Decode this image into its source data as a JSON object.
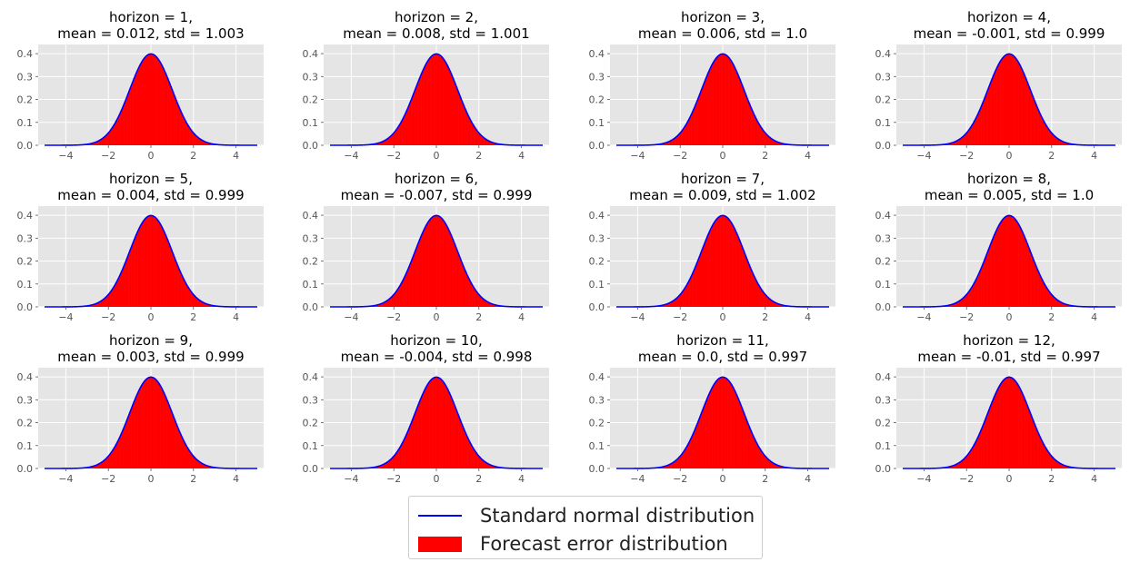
{
  "colors": {
    "axes_background": "#e5e5e5",
    "grid": "#ffffff",
    "histogram": "#ff0000",
    "normal_curve": "#0000ff",
    "tick_text": "#555555",
    "title_text": "#000000"
  },
  "chart_data": [
    {
      "type": "histogram",
      "title_line1": "horizon = 1,",
      "title_line2": "mean = 0.012, std = 1.003",
      "mean": 0.012,
      "std": 1.003,
      "xlim": [
        -5.3,
        5.3
      ],
      "ylim": [
        0,
        0.44
      ],
      "xticks": [
        -4,
        -2,
        0,
        2,
        4
      ],
      "yticks": [
        0.0,
        0.1,
        0.2,
        0.3,
        0.4
      ],
      "grid": true
    },
    {
      "type": "histogram",
      "title_line1": "horizon = 2,",
      "title_line2": "mean = 0.008, std = 1.001",
      "mean": 0.008,
      "std": 1.001,
      "xlim": [
        -5.3,
        5.3
      ],
      "ylim": [
        0,
        0.44
      ],
      "xticks": [
        -4,
        -2,
        0,
        2,
        4
      ],
      "yticks": [
        0.0,
        0.1,
        0.2,
        0.3,
        0.4
      ],
      "grid": true
    },
    {
      "type": "histogram",
      "title_line1": "horizon = 3,",
      "title_line2": "mean = 0.006, std = 1.0",
      "mean": 0.006,
      "std": 1.0,
      "xlim": [
        -5.3,
        5.3
      ],
      "ylim": [
        0,
        0.44
      ],
      "xticks": [
        -4,
        -2,
        0,
        2,
        4
      ],
      "yticks": [
        0.0,
        0.1,
        0.2,
        0.3,
        0.4
      ],
      "grid": true
    },
    {
      "type": "histogram",
      "title_line1": "horizon = 4,",
      "title_line2": "mean = -0.001, std = 0.999",
      "mean": -0.001,
      "std": 0.999,
      "xlim": [
        -5.3,
        5.3
      ],
      "ylim": [
        0,
        0.44
      ],
      "xticks": [
        -4,
        -2,
        0,
        2,
        4
      ],
      "yticks": [
        0.0,
        0.1,
        0.2,
        0.3,
        0.4
      ],
      "grid": true
    },
    {
      "type": "histogram",
      "title_line1": "horizon = 5,",
      "title_line2": "mean = 0.004, std = 0.999",
      "mean": 0.004,
      "std": 0.999,
      "xlim": [
        -5.3,
        5.3
      ],
      "ylim": [
        0,
        0.44
      ],
      "xticks": [
        -4,
        -2,
        0,
        2,
        4
      ],
      "yticks": [
        0.0,
        0.1,
        0.2,
        0.3,
        0.4
      ],
      "grid": true
    },
    {
      "type": "histogram",
      "title_line1": "horizon = 6,",
      "title_line2": "mean = -0.007, std = 0.999",
      "mean": -0.007,
      "std": 0.999,
      "xlim": [
        -5.3,
        5.3
      ],
      "ylim": [
        0,
        0.44
      ],
      "xticks": [
        -4,
        -2,
        0,
        2,
        4
      ],
      "yticks": [
        0.0,
        0.1,
        0.2,
        0.3,
        0.4
      ],
      "grid": true
    },
    {
      "type": "histogram",
      "title_line1": "horizon = 7,",
      "title_line2": "mean = 0.009, std = 1.002",
      "mean": 0.009,
      "std": 1.002,
      "xlim": [
        -5.3,
        5.3
      ],
      "ylim": [
        0,
        0.44
      ],
      "xticks": [
        -4,
        -2,
        0,
        2,
        4
      ],
      "yticks": [
        0.0,
        0.1,
        0.2,
        0.3,
        0.4
      ],
      "grid": true
    },
    {
      "type": "histogram",
      "title_line1": "horizon = 8,",
      "title_line2": "mean = 0.005, std = 1.0",
      "mean": 0.005,
      "std": 1.0,
      "xlim": [
        -5.3,
        5.3
      ],
      "ylim": [
        0,
        0.44
      ],
      "xticks": [
        -4,
        -2,
        0,
        2,
        4
      ],
      "yticks": [
        0.0,
        0.1,
        0.2,
        0.3,
        0.4
      ],
      "grid": true
    },
    {
      "type": "histogram",
      "title_line1": "horizon = 9,",
      "title_line2": "mean = 0.003, std = 0.999",
      "mean": 0.003,
      "std": 0.999,
      "xlim": [
        -5.3,
        5.3
      ],
      "ylim": [
        0,
        0.44
      ],
      "xticks": [
        -4,
        -2,
        0,
        2,
        4
      ],
      "yticks": [
        0.0,
        0.1,
        0.2,
        0.3,
        0.4
      ],
      "grid": true
    },
    {
      "type": "histogram",
      "title_line1": "horizon = 10,",
      "title_line2": "mean = -0.004, std = 0.998",
      "mean": -0.004,
      "std": 0.998,
      "xlim": [
        -5.3,
        5.3
      ],
      "ylim": [
        0,
        0.44
      ],
      "xticks": [
        -4,
        -2,
        0,
        2,
        4
      ],
      "yticks": [
        0.0,
        0.1,
        0.2,
        0.3,
        0.4
      ],
      "grid": true
    },
    {
      "type": "histogram",
      "title_line1": "horizon = 11,",
      "title_line2": "mean = 0.0, std = 0.997",
      "mean": 0.0,
      "std": 0.997,
      "xlim": [
        -5.3,
        5.3
      ],
      "ylim": [
        0,
        0.44
      ],
      "xticks": [
        -4,
        -2,
        0,
        2,
        4
      ],
      "yticks": [
        0.0,
        0.1,
        0.2,
        0.3,
        0.4
      ],
      "grid": true
    },
    {
      "type": "histogram",
      "title_line1": "horizon = 12,",
      "title_line2": "mean = -0.01, std = 0.997",
      "mean": -0.01,
      "std": 0.997,
      "xlim": [
        -5.3,
        5.3
      ],
      "ylim": [
        0,
        0.44
      ],
      "xticks": [
        -4,
        -2,
        0,
        2,
        4
      ],
      "yticks": [
        0.0,
        0.1,
        0.2,
        0.3,
        0.4
      ],
      "grid": true
    }
  ],
  "legend": {
    "placement": "bottom-center",
    "entries": [
      {
        "label": "Standard normal distribution",
        "marker": "line",
        "color": "#0000ff"
      },
      {
        "label": "Forecast error distribution",
        "marker": "patch",
        "color": "#ff0000"
      }
    ]
  }
}
